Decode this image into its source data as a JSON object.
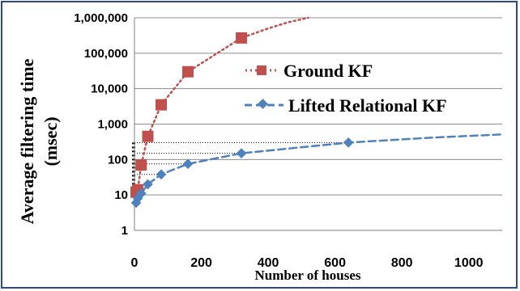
{
  "chart_data": {
    "type": "line",
    "ylabel_line1": "Average filtering time",
    "ylabel_line2": "(msec)",
    "xlabel": "Number of houses",
    "y_scale": "log",
    "ylim": [
      1,
      1000000
    ],
    "xlim": [
      0,
      1100
    ],
    "y_ticks": [
      1,
      10,
      100,
      1000,
      10000,
      100000,
      1000000
    ],
    "y_tick_labels": [
      "1",
      "10",
      "100",
      "1,000",
      "10,000",
      "100,000",
      "1,000,000"
    ],
    "x_ticks": [
      0,
      200,
      400,
      600,
      800,
      1000
    ],
    "x_tick_labels": [
      "0",
      "200",
      "400",
      "600",
      "800",
      "1000"
    ],
    "grid": "horizontal",
    "legend_position": "right",
    "series": [
      {
        "name": "Ground KF",
        "color": "#c0504d",
        "marker": "square",
        "line_style": "dotted",
        "x": [
          5,
          10,
          20,
          40,
          80,
          160,
          320
        ],
        "y": [
          12,
          14,
          70,
          450,
          3500,
          30000,
          270000
        ],
        "trend_x": [
          5,
          10,
          20,
          40,
          80,
          160,
          320,
          400,
          460,
          520
        ],
        "trend_y": [
          12,
          14,
          70,
          450,
          3500,
          30000,
          270000,
          500000,
          750000,
          1000000
        ]
      },
      {
        "name": "Lifted Relational KF",
        "color": "#4f81bd",
        "marker": "diamond",
        "line_style": "dashed",
        "x": [
          5,
          10,
          20,
          40,
          80,
          160,
          320,
          640
        ],
        "y": [
          6,
          8,
          11,
          20,
          38,
          75,
          150,
          300
        ],
        "trend_x": [
          5,
          10,
          20,
          40,
          80,
          160,
          320,
          640,
          900,
          1100
        ],
        "trend_y": [
          6,
          8,
          11,
          20,
          38,
          75,
          150,
          300,
          420,
          510
        ]
      }
    ],
    "guide_lines": {
      "color": "#000000",
      "y_values": [
        11,
        38,
        75,
        150,
        300
      ]
    }
  }
}
